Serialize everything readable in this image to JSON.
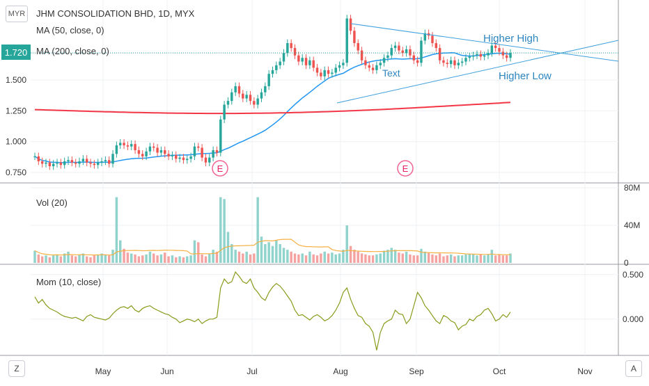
{
  "header": {
    "currency": "MYR",
    "title": "JHM CONSOLIDATION BHD, 1D, MYX",
    "ma50_label": "MA (50, close, 0)",
    "ma200_label": "MA (200, close, 0)",
    "last_price": "1.720",
    "vol_label": "Vol (20)",
    "mom_label": "Mom (10, close)"
  },
  "controls": {
    "zoom_left": "Z",
    "auto_right": "A"
  },
  "chart_data": [
    {
      "type": "candlestick",
      "title": "JHM CONSOLIDATION BHD, 1D, MYX",
      "x_ticks": [
        "May",
        "Jun",
        "Jul",
        "Aug",
        "Sep",
        "Oct",
        "Nov"
      ],
      "y_ticks": [
        "0.750",
        "1.000",
        "1.250",
        "1.500",
        "1.720"
      ],
      "ylim": [
        0.67,
        2.15
      ],
      "last_price": 1.72,
      "price_closes": [
        0.88,
        0.84,
        0.82,
        0.83,
        0.8,
        0.82,
        0.83,
        0.81,
        0.84,
        0.85,
        0.83,
        0.82,
        0.84,
        0.86,
        0.83,
        0.82,
        0.81,
        0.83,
        0.84,
        0.85,
        0.82,
        0.9,
        0.97,
        0.99,
        0.97,
        0.96,
        0.98,
        0.93,
        0.9,
        0.88,
        0.92,
        0.96,
        0.95,
        0.91,
        0.93,
        0.9,
        0.88,
        0.89,
        0.86,
        0.87,
        0.85,
        0.86,
        0.88,
        0.96,
        0.95,
        0.87,
        0.83,
        0.87,
        0.93,
        0.91,
        1.18,
        1.3,
        1.33,
        1.4,
        1.45,
        1.39,
        1.35,
        1.38,
        1.33,
        1.3,
        1.35,
        1.4,
        1.45,
        1.55,
        1.58,
        1.62,
        1.65,
        1.72,
        1.8,
        1.76,
        1.7,
        1.65,
        1.68,
        1.62,
        1.66,
        1.6,
        1.56,
        1.53,
        1.58,
        1.55,
        1.56,
        1.6,
        1.62,
        1.64,
        2.0,
        1.9,
        1.8,
        1.74,
        1.66,
        1.62,
        1.6,
        1.58,
        1.62,
        1.64,
        1.68,
        1.7,
        1.76,
        1.78,
        1.74,
        1.72,
        1.75,
        1.7,
        1.66,
        1.64,
        1.82,
        1.88,
        1.86,
        1.8,
        1.76,
        1.66,
        1.64,
        1.63,
        1.66,
        1.62,
        1.64,
        1.65,
        1.68,
        1.69,
        1.7,
        1.71,
        1.69,
        1.7,
        1.72,
        1.78,
        1.76,
        1.73,
        1.7,
        1.68,
        1.72
      ],
      "ma50_label": "MA (50, close, 0)",
      "ma200_label": "MA (200, close, 0)",
      "drawings": {
        "annotations": [
          "Higher High",
          "Higher Low",
          "Text"
        ],
        "earnings_markers": [
          "E",
          "E"
        ]
      },
      "colors": {
        "up": "#26a69a",
        "down": "#ef5350",
        "ma50": "#2196f3",
        "ma200": "#f23645",
        "trendline": "#3fa0de"
      }
    },
    {
      "type": "bar",
      "title": "Vol (20)",
      "y_ticks": [
        "0",
        "40M",
        "80M"
      ],
      "ylim": [
        0,
        80
      ],
      "volume_units": "M",
      "volume_values": [
        13,
        9,
        7,
        8,
        6,
        8,
        9,
        7,
        10,
        12,
        8,
        7,
        9,
        10,
        7,
        6,
        8,
        9,
        10,
        9,
        8,
        14,
        70,
        24,
        15,
        11,
        10,
        9,
        7,
        8,
        9,
        12,
        10,
        8,
        9,
        11,
        7,
        8,
        6,
        7,
        6,
        7,
        8,
        24,
        22,
        9,
        7,
        10,
        14,
        12,
        70,
        68,
        33,
        20,
        14,
        12,
        10,
        12,
        9,
        10,
        70,
        28,
        20,
        22,
        18,
        24,
        20,
        16,
        14,
        12,
        10,
        9,
        10,
        8,
        12,
        9,
        8,
        10,
        12,
        10,
        11,
        9,
        10,
        14,
        40,
        18,
        14,
        12,
        10,
        9,
        8,
        8,
        9,
        10,
        13,
        14,
        16,
        14,
        11,
        10,
        12,
        9,
        8,
        8,
        15,
        12,
        11,
        9,
        8,
        10,
        7,
        8,
        9,
        7,
        8,
        8,
        9,
        10,
        9,
        8,
        9,
        8,
        9,
        14,
        8,
        9,
        8,
        8,
        10
      ],
      "volume_ma_color": "#f5b041"
    },
    {
      "type": "line",
      "title": "Mom (10, close)",
      "y_ticks": [
        "0.500",
        "0.000"
      ],
      "ylim": [
        -0.4,
        0.6
      ],
      "mom_values": [
        0.25,
        0.18,
        0.22,
        0.16,
        0.12,
        0.1,
        0.08,
        0.05,
        0.03,
        0.02,
        0.01,
        0.02,
        0.0,
        -0.02,
        0.03,
        0.05,
        0.02,
        0.01,
        0.0,
        -0.01,
        0.01,
        0.06,
        0.1,
        0.13,
        0.14,
        0.12,
        0.15,
        0.1,
        0.08,
        0.12,
        0.14,
        0.15,
        0.12,
        0.1,
        0.08,
        0.06,
        0.05,
        0.02,
        0.0,
        -0.04,
        -0.02,
        0.0,
        -0.01,
        -0.03,
        0.0,
        -0.05,
        -0.02,
        0.0,
        0.0,
        0.02,
        0.35,
        0.45,
        0.4,
        0.42,
        0.53,
        0.48,
        0.42,
        0.4,
        0.45,
        0.35,
        0.3,
        0.24,
        0.21,
        0.3,
        0.36,
        0.4,
        0.37,
        0.32,
        0.26,
        0.2,
        0.1,
        0.04,
        0.05,
        0.02,
        -0.01,
        0.03,
        0.05,
        0.02,
        -0.02,
        0.0,
        0.04,
        0.1,
        0.18,
        0.3,
        0.35,
        0.22,
        0.12,
        0.04,
        0.02,
        -0.05,
        -0.08,
        -0.15,
        -0.35,
        -0.15,
        -0.05,
        -0.02,
        0.0,
        0.1,
        0.06,
        0.05,
        -0.05,
        0.0,
        0.15,
        0.3,
        0.24,
        0.15,
        0.1,
        0.04,
        -0.02,
        -0.05,
        0.04,
        0.02,
        -0.02,
        -0.04,
        -0.12,
        -0.08,
        -0.06,
        0.0,
        -0.02,
        0.03,
        0.05,
        0.1,
        0.12,
        0.06,
        -0.02,
        0.0,
        0.05,
        0.02,
        0.08
      ],
      "line_color": "#8a9a1a"
    }
  ]
}
